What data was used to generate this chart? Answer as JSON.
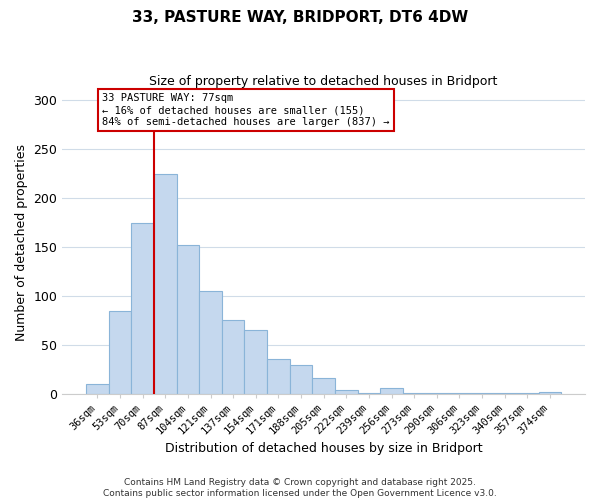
{
  "title": "33, PASTURE WAY, BRIDPORT, DT6 4DW",
  "subtitle": "Size of property relative to detached houses in Bridport",
  "xlabel": "Distribution of detached houses by size in Bridport",
  "ylabel": "Number of detached properties",
  "bar_labels": [
    "36sqm",
    "53sqm",
    "70sqm",
    "87sqm",
    "104sqm",
    "121sqm",
    "137sqm",
    "154sqm",
    "171sqm",
    "188sqm",
    "205sqm",
    "222sqm",
    "239sqm",
    "256sqm",
    "273sqm",
    "290sqm",
    "306sqm",
    "323sqm",
    "340sqm",
    "357sqm",
    "374sqm"
  ],
  "bar_values": [
    10,
    85,
    175,
    225,
    152,
    105,
    75,
    65,
    36,
    29,
    16,
    4,
    1,
    6,
    1,
    1,
    1,
    1,
    1,
    1,
    2
  ],
  "bar_color": "#c5d8ee",
  "bar_edge_color": "#8ab4d8",
  "vline_x_index": 2,
  "vline_color": "#cc0000",
  "annotation_title": "33 PASTURE WAY: 77sqm",
  "annotation_line1": "← 16% of detached houses are smaller (155)",
  "annotation_line2": "84% of semi-detached houses are larger (837) →",
  "annotation_box_color": "#ffffff",
  "annotation_box_edge": "#cc0000",
  "ylim": [
    0,
    310
  ],
  "yticks": [
    0,
    50,
    100,
    150,
    200,
    250,
    300
  ],
  "footer1": "Contains HM Land Registry data © Crown copyright and database right 2025.",
  "footer2": "Contains public sector information licensed under the Open Government Licence v3.0.",
  "background_color": "#ffffff",
  "grid_color": "#d0dce8"
}
